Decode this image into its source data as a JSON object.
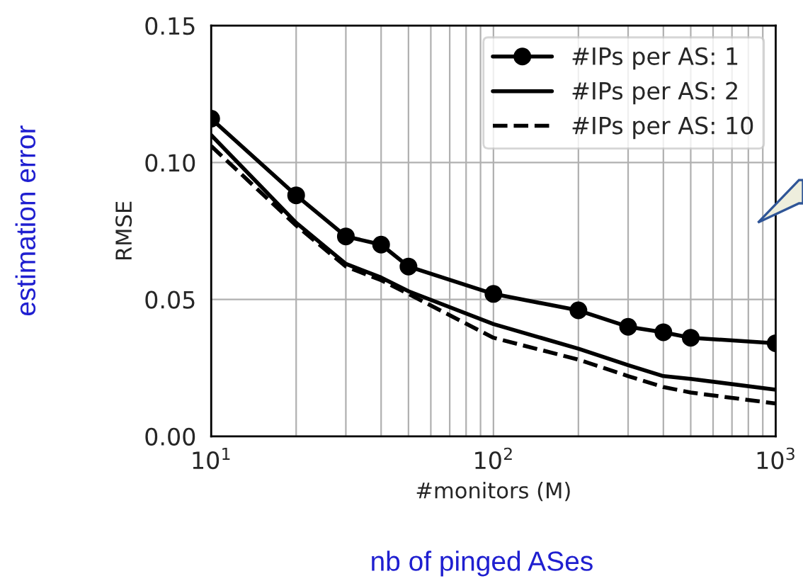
{
  "chart_data": {
    "type": "line",
    "xlabel": "#monitors (M)",
    "ylabel": "RMSE",
    "log": "x",
    "grid": true,
    "legend": "top right",
    "xlim": [
      10,
      1000
    ],
    "xticks": [
      {
        "value": 10,
        "label": "10$^{1}$"
      },
      {
        "value": 100,
        "label": "10$^{2}$"
      },
      {
        "value": 1000,
        "label": "10$^{3}$"
      }
    ],
    "ylim": [
      0,
      0.15
    ],
    "yticks": [
      {
        "value": 0,
        "label": "0.00"
      },
      {
        "value": 0.05,
        "label": "0.05"
      },
      {
        "value": 0.1,
        "label": "0.10"
      },
      {
        "value": 0.15,
        "label": "0.15"
      }
    ],
    "x": [
      10,
      20,
      30,
      40,
      50,
      100,
      200,
      300,
      400,
      500,
      1000
    ],
    "series": [
      {
        "name": "#IPs per AS: 1",
        "color": "#000000",
        "marker": "circle",
        "line_style": "solid",
        "values": [
          0.116,
          0.088,
          0.073,
          0.07,
          0.062,
          0.052,
          0.046,
          0.04,
          0.038,
          0.036,
          0.034
        ]
      },
      {
        "name": "#IPs per AS: 2",
        "color": "#000000",
        "marker": "none",
        "line_style": "solid",
        "values": [
          0.11,
          0.078,
          0.063,
          0.058,
          0.053,
          0.041,
          0.032,
          0.026,
          0.022,
          0.021,
          0.017
        ]
      },
      {
        "name": "#IPs per AS: 10",
        "color": "#000000",
        "marker": "none",
        "line_style": "dashed",
        "values": [
          0.106,
          0.077,
          0.062,
          0.057,
          0.052,
          0.036,
          0.028,
          0.022,
          0.018,
          0.016,
          0.012
        ]
      }
    ],
    "annotations": [
      "estimation error",
      "nb of pinged ASes"
    ]
  }
}
